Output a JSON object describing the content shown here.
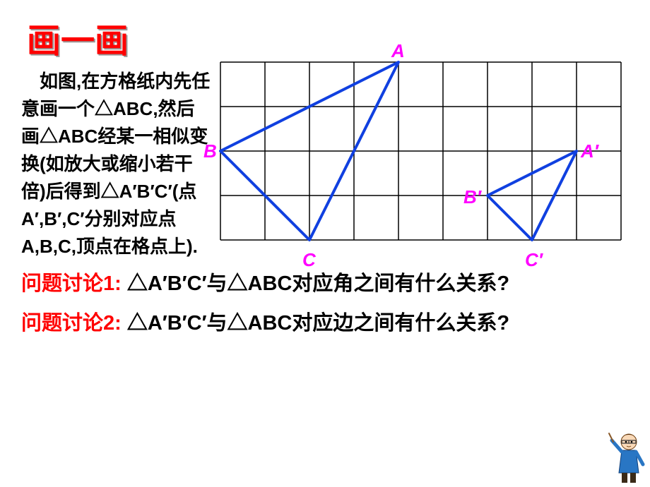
{
  "title": "画一画",
  "description": "　如图,在方格纸内先任意画一个△ABC,然后画△ABC经某一相似变换(如放大或缩小若干倍)后得到△A′B′C′(点A′,B′,C′分别对应点A,B,C,顶点在格点上).",
  "question1_prefix": "问题讨论1: ",
  "question1_body": "△A′B′C′与△ABC对应角之间有什么关系?",
  "question2_prefix": "问题讨论2: ",
  "question2_body": "△A′B′C′与△ABC对应边之间有什么关系?",
  "diagram": {
    "grid": {
      "cols": 9,
      "rows": 4,
      "cell": 63,
      "stroke": "#000000",
      "strokeWidth": 1.5
    },
    "triangle_stroke": "#1040e0",
    "triangle_strokeWidth": 4,
    "label_color": "#ff00ff",
    "label_fontsize": 26,
    "triangles": {
      "ABC": {
        "A": [
          4,
          0
        ],
        "B": [
          0,
          2
        ],
        "C": [
          2,
          4
        ]
      },
      "AprimeBprimeCprime": {
        "Aprime": [
          8,
          2
        ],
        "Bprime": [
          6,
          3
        ],
        "Cprime": [
          7,
          4
        ]
      }
    },
    "labels": {
      "A": "A",
      "B": "B",
      "C": "C",
      "Aprime": "A′",
      "Bprime": "B′",
      "Cprime": "C′"
    }
  },
  "colors": {
    "title": "#ff0000",
    "question_prefix": "#ff0000",
    "body_text": "#000000",
    "vertex_label": "#ff00ff",
    "triangle": "#1040e0"
  }
}
